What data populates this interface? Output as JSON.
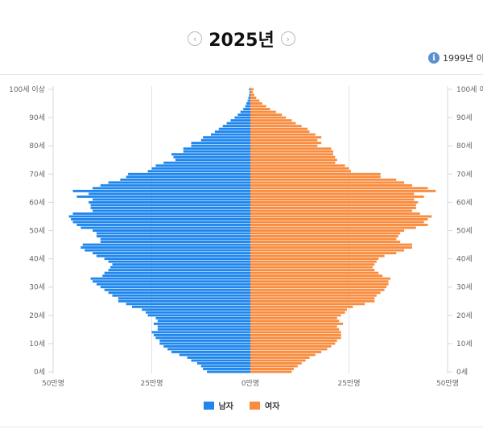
{
  "header": {
    "year_title": "2025년",
    "prev_icon": "chevron-left-circle-icon",
    "next_icon": "chevron-right-circle-icon",
    "prev_glyph": "‹",
    "next_glyph": "›"
  },
  "info": {
    "icon": "info-icon",
    "glyph": "i",
    "text": "1999년 이"
  },
  "chart_data": {
    "type": "bar",
    "subtype": "population-pyramid",
    "title": "2025년",
    "unit": "만명",
    "xlim": [
      -50,
      50
    ],
    "x_ticks": [
      "50만명",
      "25만명",
      "0만명",
      "25만명",
      "50만명"
    ],
    "x_tick_values": [
      -50,
      -25,
      0,
      25,
      50
    ],
    "y_ticks": [
      {
        "age": 0,
        "label": "0세"
      },
      {
        "age": 10,
        "label": "10세"
      },
      {
        "age": 20,
        "label": "20세"
      },
      {
        "age": 30,
        "label": "30세"
      },
      {
        "age": 40,
        "label": "40세"
      },
      {
        "age": 50,
        "label": "50세"
      },
      {
        "age": 60,
        "label": "60세"
      },
      {
        "age": 70,
        "label": "70세"
      },
      {
        "age": 80,
        "label": "80세"
      },
      {
        "age": 90,
        "label": "90세"
      },
      {
        "age": 100,
        "label": "100세 이상"
      }
    ],
    "ages": "0-100",
    "legend_position": "bottom-center",
    "series": [
      {
        "name": "남자",
        "color": "#1f86ee",
        "values": [
          11,
          12,
          12.5,
          13.5,
          15,
          16,
          18,
          20,
          21,
          22,
          23,
          23,
          24,
          24.5,
          25,
          23.5,
          23.5,
          24.5,
          23.5,
          24,
          26,
          26.5,
          27.5,
          30,
          31.5,
          33.5,
          33.5,
          35,
          36,
          37,
          38,
          39,
          40,
          40.5,
          37.5,
          37,
          36,
          35.5,
          35,
          36,
          37,
          39,
          40,
          42,
          43,
          42.5,
          38,
          38,
          39,
          39,
          40,
          43,
          44,
          45,
          45.5,
          46,
          45,
          40,
          40.5,
          40.5,
          41,
          40,
          44,
          41,
          45,
          40,
          38,
          36,
          33,
          31.5,
          31,
          26,
          25,
          24,
          22,
          19,
          19.5,
          20,
          17,
          17,
          15,
          15,
          12.5,
          12,
          10,
          9,
          8,
          7,
          6,
          5,
          4,
          3.2,
          2.5,
          1.8,
          1.3,
          1,
          0.7,
          0.5,
          0.3,
          0.2,
          0.3
        ]
      },
      {
        "name": "여자",
        "color": "#f98c3e",
        "values": [
          10.5,
          11,
          12,
          13,
          14,
          15,
          16.5,
          18,
          19.5,
          20.5,
          21.5,
          22,
          23,
          23,
          23,
          22.5,
          22,
          23.5,
          22.5,
          22,
          23,
          24,
          24.5,
          26,
          29,
          31.5,
          31.5,
          32,
          33,
          34,
          34.5,
          35,
          35,
          35.5,
          33.5,
          32.5,
          31.5,
          31,
          31.5,
          32,
          32.5,
          34,
          37,
          39,
          41,
          41,
          38,
          37,
          37.5,
          38,
          39,
          42,
          45,
          44,
          45,
          46,
          43,
          41,
          42,
          42,
          42.5,
          41.5,
          44,
          41.5,
          47,
          45,
          41,
          39,
          37,
          33,
          33,
          25.5,
          25,
          24,
          21.5,
          22,
          21.5,
          21,
          21,
          20.5,
          17,
          18,
          17,
          18,
          16.5,
          15,
          14.5,
          13,
          11.5,
          10.5,
          9,
          8,
          6.5,
          5,
          4,
          3,
          2.3,
          1.5,
          1,
          0.6,
          0.8
        ]
      }
    ]
  }
}
